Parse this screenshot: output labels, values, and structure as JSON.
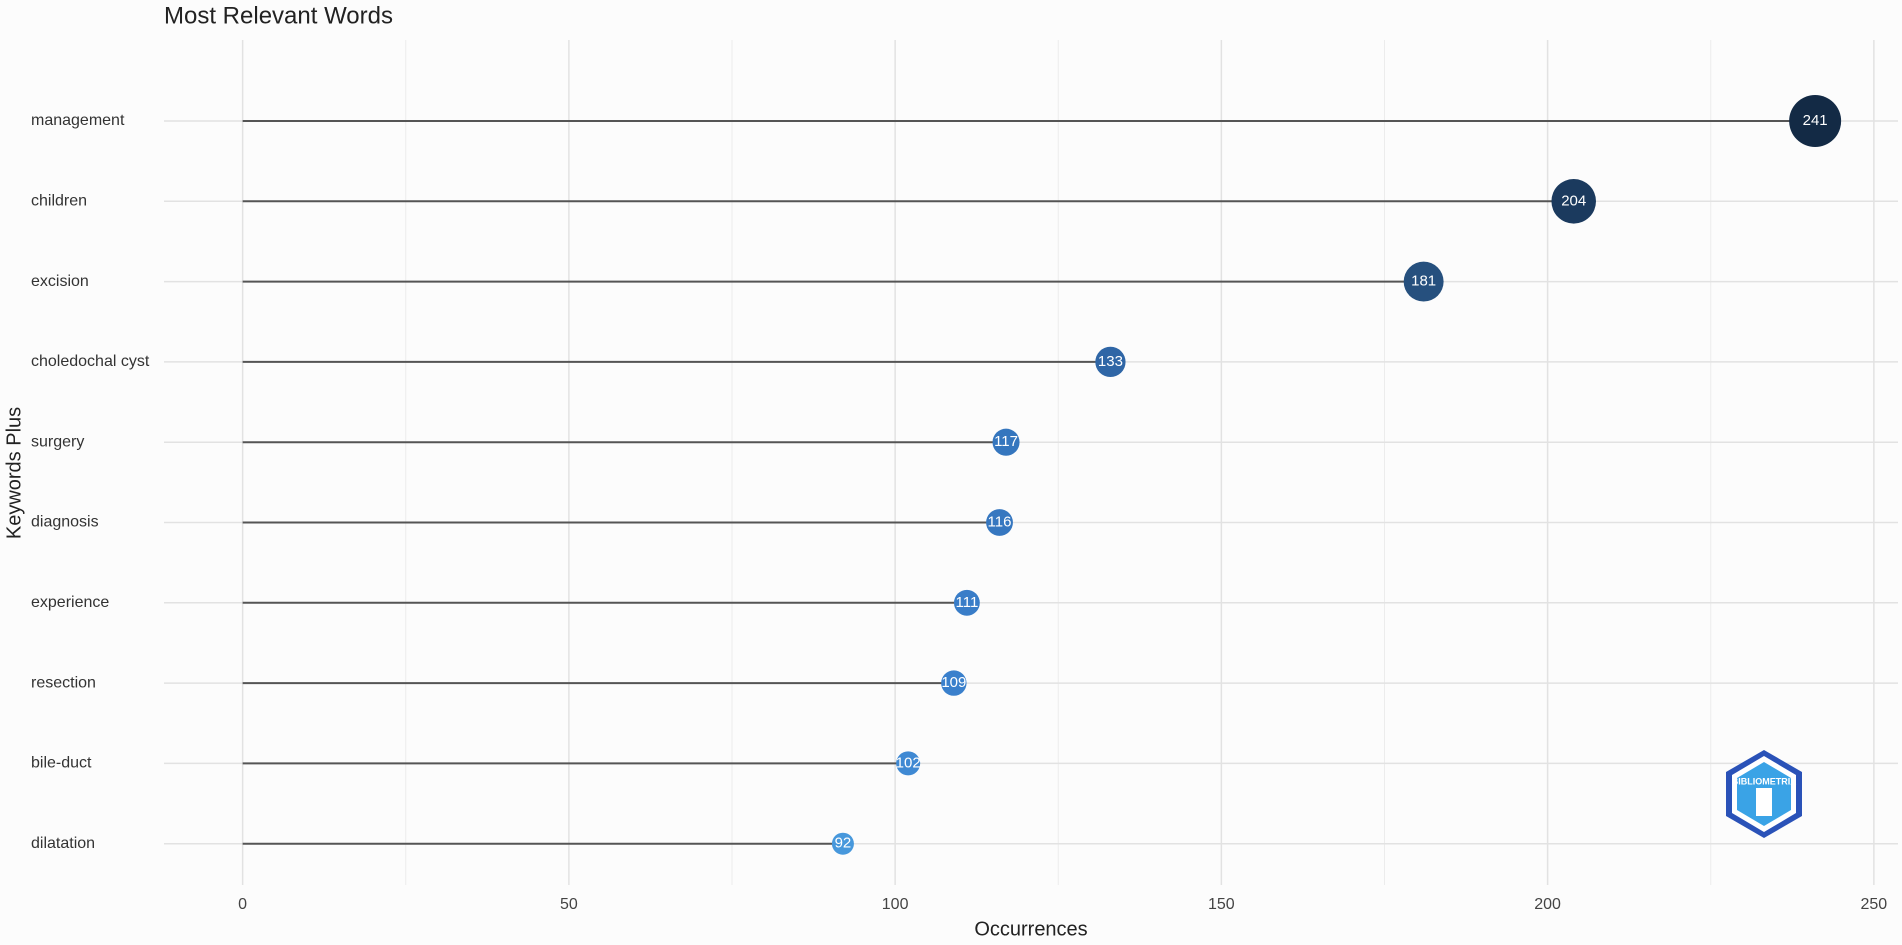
{
  "chart_data": {
    "type": "lollipop",
    "title": "Most Relevant Words",
    "x_label": "Occurrences",
    "y_label": "Keywords Plus",
    "categories": [
      "management",
      "children",
      "excision",
      "choledochal cyst",
      "surgery",
      "diagnosis",
      "experience",
      "resection",
      "bile-duct",
      "dilatation"
    ],
    "values": [
      241,
      204,
      181,
      133,
      117,
      116,
      111,
      109,
      102,
      92
    ],
    "colors": [
      "#132a45",
      "#1b3a5e",
      "#26507e",
      "#2f66a6",
      "#3576be",
      "#3677c0",
      "#397dc8",
      "#3a80cc",
      "#3f89d3",
      "#4798dc"
    ],
    "stem_color": "#555555",
    "xlim": [
      -12.05,
      253.7
    ],
    "xticks": [
      0,
      50,
      100,
      150,
      200,
      250
    ],
    "grid": true,
    "watermark": "BIBLIOMETRIX"
  }
}
